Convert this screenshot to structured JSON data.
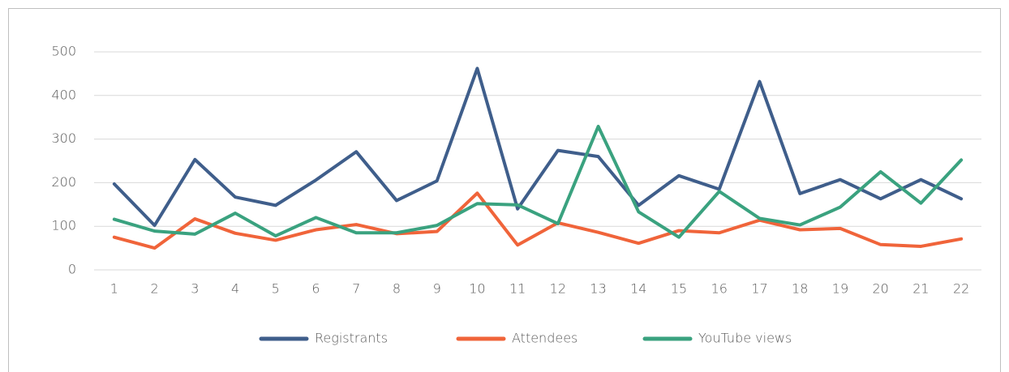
{
  "chart_data": {
    "type": "line",
    "categories": [
      "1",
      "2",
      "3",
      "4",
      "5",
      "6",
      "7",
      "8",
      "9",
      "10",
      "11",
      "12",
      "13",
      "14",
      "15",
      "16",
      "17",
      "18",
      "19",
      "20",
      "21",
      "22"
    ],
    "series": [
      {
        "name": "Registrants",
        "color": "#3f5e8b",
        "values": [
          197,
          102,
          253,
          167,
          148,
          206,
          271,
          159,
          204,
          462,
          140,
          274,
          260,
          148,
          216,
          185,
          432,
          175,
          207,
          163,
          207,
          163
        ]
      },
      {
        "name": "Attendees",
        "color": "#f0643a",
        "values": [
          75,
          50,
          117,
          84,
          68,
          92,
          104,
          83,
          88,
          176,
          57,
          108,
          86,
          61,
          90,
          85,
          114,
          92,
          95,
          58,
          54,
          71
        ]
      },
      {
        "name": "YouTube views",
        "color": "#3aa27f",
        "values": [
          116,
          89,
          82,
          130,
          78,
          120,
          85,
          85,
          102,
          152,
          149,
          106,
          329,
          133,
          75,
          180,
          118,
          103,
          144,
          225,
          153,
          252
        ]
      }
    ],
    "ylim": [
      0,
      500
    ],
    "yticks": [
      0,
      100,
      200,
      300,
      400,
      500
    ],
    "grid": true,
    "legend": "bottom"
  }
}
